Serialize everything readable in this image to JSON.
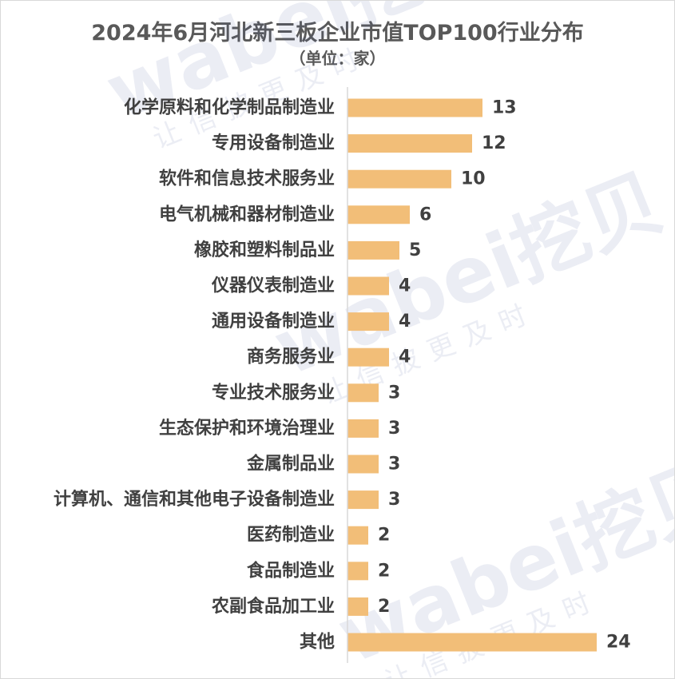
{
  "chart_data": {
    "type": "bar",
    "orientation": "horizontal",
    "title": "2024年6月河北新三板企业市值TOP100行业分布",
    "subtitle": "（单位：家）",
    "categories": [
      "化学原料和化学制品制造业",
      "专用设备制造业",
      "软件和信息技术服务业",
      "电气机械和器材制造业",
      "橡胶和塑料制品业",
      "仪器仪表制造业",
      "通用设备制造业",
      "商务服务业",
      "专业技术服务业",
      "生态保护和环境治理业",
      "金属制品业",
      "计算机、通信和其他电子设备制造业",
      "医药制造业",
      "食品制造业",
      "农副食品加工业",
      "其他"
    ],
    "values": [
      13,
      12,
      10,
      6,
      5,
      4,
      4,
      4,
      3,
      3,
      3,
      3,
      2,
      2,
      2,
      24
    ],
    "data_labels": true,
    "xlim": [
      0,
      24
    ],
    "grid": false,
    "bar_color": "#F2BE78",
    "label_color": "#404040",
    "axis_color": "#D9D9D9",
    "title_color": "#595959"
  },
  "watermark": {
    "logo_text": "wabei挖贝",
    "slogan": "让信披更及时"
  }
}
